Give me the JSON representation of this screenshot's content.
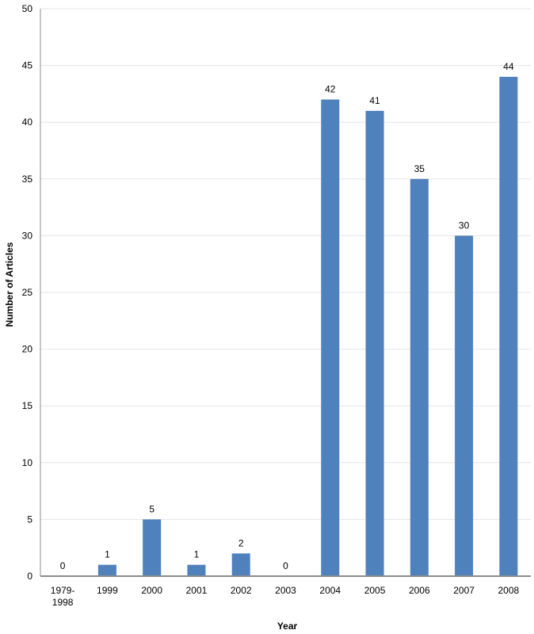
{
  "chart_data": {
    "type": "bar",
    "title": "",
    "xlabel": "Year",
    "ylabel": "Number of Articles",
    "categories": [
      "1979-1998",
      "1999",
      "2000",
      "2001",
      "2002",
      "2003",
      "2004",
      "2005",
      "2006",
      "2007",
      "2008"
    ],
    "values": [
      0,
      1,
      5,
      1,
      2,
      0,
      42,
      41,
      35,
      30,
      44
    ],
    "data_labels": [
      "0",
      "1",
      "5",
      "1",
      "2",
      "0",
      "42",
      "41",
      "35",
      "30",
      "44"
    ],
    "ylim": [
      0,
      50
    ],
    "yticks": [
      0,
      5,
      10,
      15,
      20,
      25,
      30,
      35,
      40,
      45,
      50
    ],
    "grid": true,
    "legend": "none",
    "colors": {
      "bar": "#4f81bd",
      "grid": "#e6e6e6",
      "axis": "#8c8c8c"
    }
  }
}
